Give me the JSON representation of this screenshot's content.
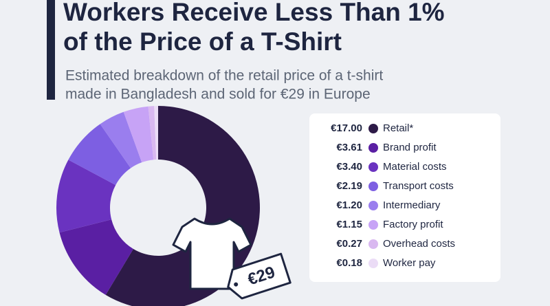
{
  "chart_data": {
    "type": "pie",
    "title_lines": [
      "Workers Receive Less Than 1%",
      "of the Price of a T-Shirt"
    ],
    "subtitle_lines": [
      "Estimated breakdown of the retail price of a t-shirt",
      "made in Bangladesh and sold for €29 in Europe"
    ],
    "price_tag": "€29",
    "categories": [
      "Retail*",
      "Brand profit",
      "Material costs",
      "Transport costs",
      "Intermediary",
      "Factory profit",
      "Overhead costs",
      "Worker pay"
    ],
    "values": [
      17.0,
      3.61,
      3.4,
      2.19,
      1.2,
      1.15,
      0.27,
      0.18
    ],
    "value_labels": [
      "€17.00",
      "€3.61",
      "€3.40",
      "€2.19",
      "€1.20",
      "€1.15",
      "€0.27",
      "€0.18"
    ],
    "colors": [
      "#2d1a47",
      "#5a1fa3",
      "#6a33c0",
      "#7d5fe2",
      "#9a7eee",
      "#c7a3f6",
      "#d9b8f0",
      "#ebdcf6"
    ]
  }
}
